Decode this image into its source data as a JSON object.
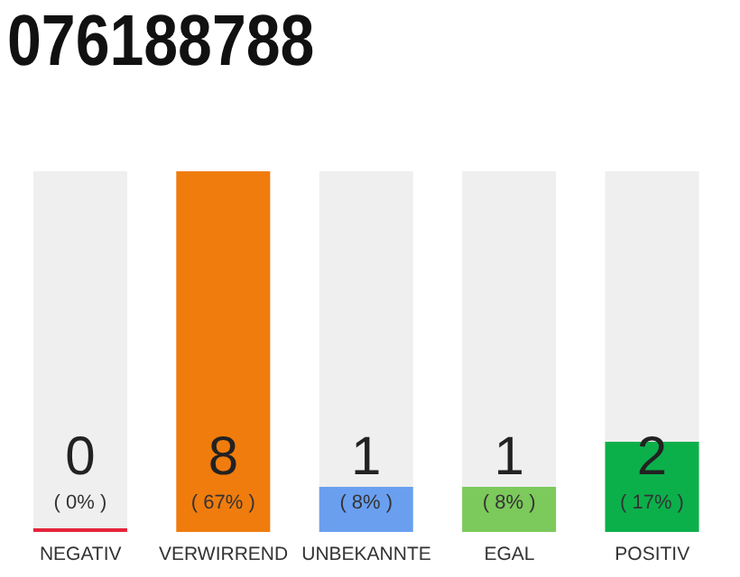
{
  "chart_data": {
    "type": "bar",
    "title": "076188788",
    "categories": [
      "NEGATIV",
      "VERWIRREND",
      "UNBEKANNTE",
      "EGAL",
      "POSITIV"
    ],
    "values": [
      0,
      8,
      1,
      1,
      2
    ],
    "colors": [
      "#e5243b",
      "#f07c0d",
      "#6a9ff0",
      "#7cc95c",
      "#0bb04b"
    ],
    "tick_labels": "x",
    "value_labels": [
      "0\n( 0% )",
      "8\n( 67% )",
      "1\n( 8% )",
      "1\n( 8% )",
      "2\n( 17% )"
    ]
  }
}
